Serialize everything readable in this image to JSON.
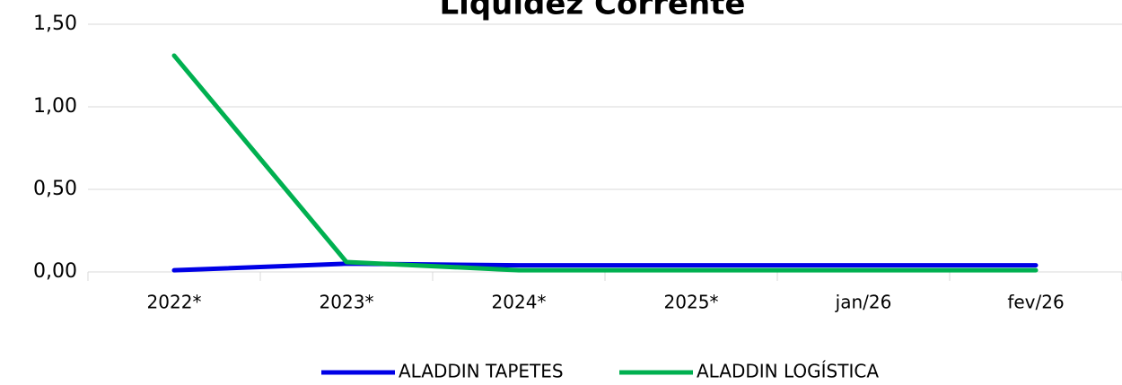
{
  "chart_data": {
    "type": "line",
    "title": "Liquidez Corrente",
    "categories": [
      "2022*",
      "2023*",
      "2024*",
      "2025*",
      "jan/26",
      "fev/26"
    ],
    "series": [
      {
        "name": "ALADDIN TAPETES",
        "color": "#0000e6",
        "values": [
          0.01,
          0.05,
          0.04,
          0.04,
          0.04,
          0.04
        ]
      },
      {
        "name": "ALADDIN LOGÍSTICA",
        "color": "#00b050",
        "values": [
          1.31,
          0.06,
          0.01,
          0.01,
          0.01,
          0.01
        ]
      }
    ],
    "ylim": [
      0,
      1.5
    ],
    "yticks": [
      {
        "value": 0,
        "label": "0,00"
      },
      {
        "value": 0.5,
        "label": "0,50"
      },
      {
        "value": 1,
        "label": "1,00"
      },
      {
        "value": 1.5,
        "label": "1,50"
      }
    ],
    "grid": true,
    "legend": "bottom"
  }
}
